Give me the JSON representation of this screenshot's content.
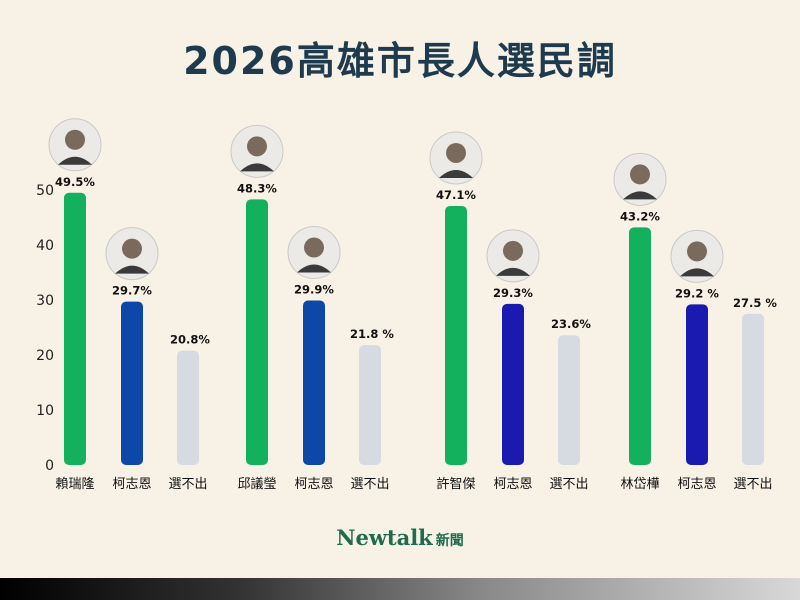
{
  "title": "2026高雄市長人選民調",
  "brand": {
    "name": "Newtalk",
    "suffix": "新聞"
  },
  "colors": {
    "green": "#13b05d",
    "blue": "#0d47a8",
    "indigo": "#1a1ab0",
    "gray": "#d6dbe2",
    "background": "#f8f2e6"
  },
  "chart_data": {
    "type": "bar",
    "ylim": [
      0,
      50
    ],
    "yticks": [
      0,
      10,
      20,
      30,
      40,
      50
    ],
    "grid": false,
    "panels": [
      {
        "bars": [
          {
            "category": "賴瑞隆",
            "value": 49.5,
            "label": "49.5%",
            "color": "green",
            "avatar": true
          },
          {
            "category": "柯志恩",
            "value": 29.7,
            "label": "29.7%",
            "color": "blue",
            "avatar": true
          },
          {
            "category": "選不出",
            "value": 20.8,
            "label": "20.8%",
            "color": "gray",
            "avatar": false
          }
        ]
      },
      {
        "bars": [
          {
            "category": "邱議瑩",
            "value": 48.3,
            "label": "48.3%",
            "color": "green",
            "avatar": true
          },
          {
            "category": "柯志恩",
            "value": 29.9,
            "label": "29.9%",
            "color": "blue",
            "avatar": true
          },
          {
            "category": "選不出",
            "value": 21.8,
            "label": "21.8 %",
            "color": "gray",
            "avatar": false
          }
        ]
      },
      {
        "bars": [
          {
            "category": "許智傑",
            "value": 47.1,
            "label": "47.1%",
            "color": "green",
            "avatar": true
          },
          {
            "category": "柯志恩",
            "value": 29.3,
            "label": "29.3%",
            "color": "indigo",
            "avatar": true
          },
          {
            "category": "選不出",
            "value": 23.6,
            "label": "23.6%",
            "color": "gray",
            "avatar": false
          }
        ]
      },
      {
        "bars": [
          {
            "category": "林岱樺",
            "value": 43.2,
            "label": "43.2%",
            "color": "green",
            "avatar": true
          },
          {
            "category": "柯志恩",
            "value": 29.2,
            "label": "29.2 %",
            "color": "indigo",
            "avatar": true
          },
          {
            "category": "選不出",
            "value": 27.5,
            "label": "27.5 %",
            "color": "gray",
            "avatar": false
          }
        ]
      }
    ]
  }
}
